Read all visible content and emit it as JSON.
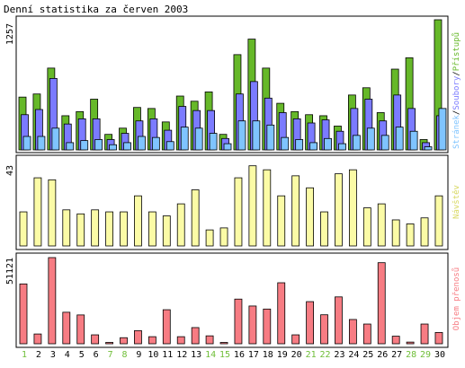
{
  "title": "Denní statistika za červen 2003",
  "colors": {
    "access": "#66b829",
    "files": "#7b7bff",
    "pages": "#7fc4ff",
    "visits": "#fbfba6",
    "traffic": "#f77c83",
    "weekday_label": "#000000",
    "weekend_label": "#6fbe38",
    "outline": "#000000",
    "background": "#ffffff"
  },
  "chart_data": [
    {
      "type": "bar",
      "title": "Denní statistika za červen 2003",
      "categories": [
        "1",
        "2",
        "3",
        "4",
        "5",
        "6",
        "7",
        "8",
        "9",
        "10",
        "11",
        "12",
        "13",
        "14",
        "15",
        "16",
        "17",
        "18",
        "19",
        "20",
        "21",
        "22",
        "23",
        "24",
        "25",
        "26",
        "27",
        "28",
        "29",
        "30"
      ],
      "weekend_days": [
        "1",
        "7",
        "8",
        "14",
        "15",
        "21",
        "22",
        "28",
        "29"
      ],
      "y_tick_label": "1257",
      "ylim": [
        0,
        1257
      ],
      "series": [
        {
          "name": "Přístupů",
          "values": [
            510,
            540,
            790,
            330,
            370,
            490,
            150,
            210,
            410,
            400,
            270,
            520,
            470,
            560,
            150,
            920,
            1070,
            790,
            450,
            370,
            340,
            330,
            230,
            530,
            600,
            360,
            780,
            890,
            100,
            1257
          ]
        },
        {
          "name": "Soubory",
          "values": [
            340,
            390,
            690,
            250,
            300,
            300,
            100,
            160,
            280,
            300,
            190,
            420,
            380,
            380,
            110,
            540,
            660,
            500,
            360,
            300,
            260,
            290,
            180,
            400,
            490,
            280,
            530,
            400,
            70,
            330
          ]
        },
        {
          "name": "Stránek",
          "values": [
            130,
            130,
            210,
            70,
            90,
            100,
            50,
            70,
            130,
            120,
            80,
            220,
            210,
            160,
            60,
            280,
            280,
            240,
            120,
            100,
            70,
            110,
            60,
            140,
            210,
            140,
            220,
            180,
            30,
            400
          ]
        }
      ],
      "legend": "right, vertical",
      "grid": false
    },
    {
      "type": "bar",
      "categories": [
        "1",
        "2",
        "3",
        "4",
        "5",
        "6",
        "7",
        "8",
        "9",
        "10",
        "11",
        "12",
        "13",
        "14",
        "15",
        "16",
        "17",
        "18",
        "19",
        "20",
        "21",
        "22",
        "23",
        "24",
        "25",
        "26",
        "27",
        "28",
        "29",
        "30"
      ],
      "y_tick_label": "43",
      "ylim": [
        0,
        43
      ],
      "series": [
        {
          "name": "Návštěv",
          "values": [
            17,
            34,
            33,
            18,
            16,
            18,
            17,
            17,
            25,
            17,
            15,
            21,
            28,
            8,
            9,
            34,
            40,
            38,
            25,
            35,
            29,
            17,
            36,
            38,
            19,
            21,
            13,
            11,
            14,
            25
          ]
        }
      ],
      "legend": "right, vertical",
      "grid": false
    },
    {
      "type": "bar",
      "categories": [
        "1",
        "2",
        "3",
        "4",
        "5",
        "6",
        "7",
        "8",
        "9",
        "10",
        "11",
        "12",
        "13",
        "14",
        "15",
        "16",
        "17",
        "18",
        "19",
        "20",
        "21",
        "22",
        "23",
        "24",
        "25",
        "26",
        "27",
        "28",
        "29",
        "30"
      ],
      "y_tick_label": "51121",
      "ylim": [
        0,
        51121
      ],
      "series": [
        {
          "name": "Objem přenosů",
          "values": [
            35500,
            5800,
            51121,
            18700,
            17100,
            5300,
            800,
            3600,
            7800,
            4200,
            20200,
            4200,
            9600,
            4700,
            800,
            26500,
            22400,
            20600,
            36200,
            5300,
            25000,
            17200,
            27800,
            14400,
            11700,
            48100,
            4500,
            1000,
            11700,
            6700
          ]
        }
      ],
      "legend": "right, vertical",
      "grid": false
    }
  ]
}
